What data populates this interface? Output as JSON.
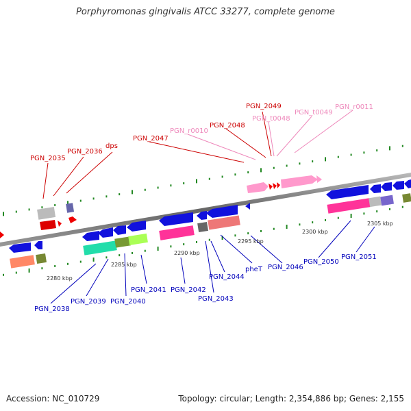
{
  "title": "Porphyromonas gingivalis ATCC 33277, complete genome",
  "footer": {
    "accession": "Accession: NC_010729",
    "topology": "Topology: circular; Length: 2,354,886 bp; Genes: 2,155"
  },
  "colors": {
    "forward_label": "#cc0000",
    "rna_label": "#ee88bb",
    "reverse_label": "#0000bb",
    "backbone": "#888888",
    "tick": "#228822"
  },
  "ruler": [
    {
      "label": "2280 kbp"
    },
    {
      "label": "2285 kbp"
    },
    {
      "label": "2290 kbp"
    },
    {
      "label": "2295 kbp"
    },
    {
      "label": "2300 kbp"
    },
    {
      "label": "2305 kbp"
    }
  ],
  "labels_top": [
    {
      "label": "PGN_2035",
      "kind": "forward"
    },
    {
      "label": "PGN_2036",
      "kind": "forward"
    },
    {
      "label": "dps",
      "kind": "forward"
    },
    {
      "label": "PGN_2047",
      "kind": "forward"
    },
    {
      "label": "PGN_r0010",
      "kind": "rna"
    },
    {
      "label": "PGN_2048",
      "kind": "forward"
    },
    {
      "label": "PGN_2049",
      "kind": "forward"
    },
    {
      "label": "PGN_t0048",
      "kind": "rna"
    },
    {
      "label": "PGN_t0049",
      "kind": "rna"
    },
    {
      "label": "PGN_r0011",
      "kind": "rna"
    }
  ],
  "labels_bottom": [
    {
      "label": "PGN_2038"
    },
    {
      "label": "PGN_2039"
    },
    {
      "label": "PGN_2040"
    },
    {
      "label": "PGN_2041"
    },
    {
      "label": "PGN_2042"
    },
    {
      "label": "PGN_2043"
    },
    {
      "label": "PGN_2044"
    },
    {
      "label": "pheT"
    },
    {
      "label": "PGN_2046"
    },
    {
      "label": "PGN_2050"
    },
    {
      "label": "PGN_2051"
    }
  ]
}
